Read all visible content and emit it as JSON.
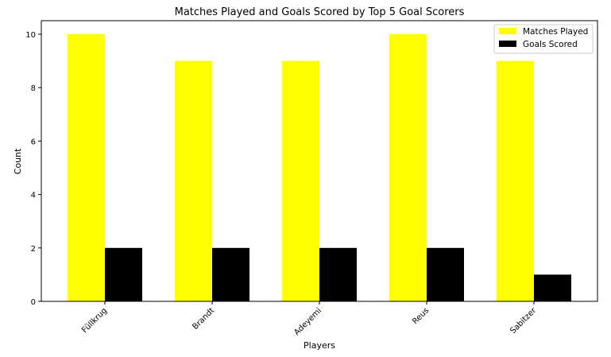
{
  "chart_data": {
    "type": "bar",
    "title": "Matches Played and Goals Scored by Top 5 Goal Scorers",
    "xlabel": "Players",
    "ylabel": "Count",
    "categories": [
      "Füllkrug",
      "Brandt",
      "Adeyemi",
      "Reus",
      "Sabitzer"
    ],
    "series": [
      {
        "name": "Matches Played",
        "values": [
          10,
          9,
          9,
          10,
          9
        ],
        "color": "#ffff00"
      },
      {
        "name": "Goals Scored",
        "values": [
          2,
          2,
          2,
          2,
          1
        ],
        "color": "#000000"
      }
    ],
    "ylim": [
      0,
      10.5
    ],
    "yticks": [
      0,
      2,
      4,
      6,
      8,
      10
    ],
    "grid": false,
    "legend_position": "top-right"
  }
}
